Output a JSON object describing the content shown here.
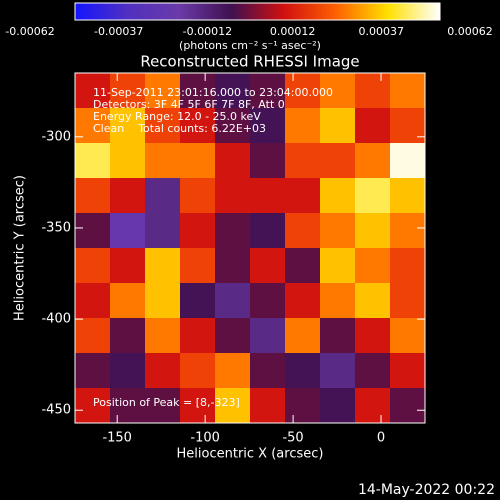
{
  "chart_data": {
    "type": "heatmap",
    "title": "Reconstructed RHESSI Image",
    "x_label": "Heliocentric X (arcsec)",
    "y_label": "Heliocentric Y (arcsec)",
    "annotations": [
      "11-Sep-2011 23:01:16.000 to 23:04:00.000",
      "Detectors: 3F 4F 5F 6F 7F 8F, Att 0",
      "Energy Range: 12.0 - 25.0 keV",
      "Clean    Total counts: 6.22E+03",
      "Position of Peak = [8,-323]"
    ],
    "footer": "14-May-2022 00:22",
    "colorbar": {
      "label": "(photons cm⁻² s⁻¹ asec⁻²)",
      "lim": [
        -0.00062,
        0.00062
      ],
      "ticks": [
        -0.00062,
        -0.00037,
        -0.00012,
        0.00012,
        0.00037,
        0.00062
      ]
    },
    "colormap": [
      "#1414ff",
      "#5030c0",
      "#6a3aa8",
      "#401050",
      "#d01010",
      "#ff6000",
      "#ffe000",
      "#ffffff"
    ],
    "xlim": [
      -174,
      25
    ],
    "ylim": [
      -457,
      -265
    ],
    "xticks": [
      -150,
      -100,
      -50,
      0
    ],
    "yticks": [
      -300,
      -350,
      -400,
      -450
    ],
    "z": [
      [
        0.0001,
        0.0002,
        0.0003,
        -5e-05,
        -0.0001,
        -5e-05,
        0.0002,
        0.0003,
        0.0002,
        0.0003
      ],
      [
        0.0003,
        0.0004,
        0.0002,
        0.0001,
        -5e-05,
        -0.0001,
        0.0003,
        0.0004,
        0.0001,
        0.0002
      ],
      [
        0.0005,
        0.0004,
        0.0003,
        0.0003,
        0.0001,
        -5e-05,
        0.0002,
        0.0002,
        0.0003,
        0.0006
      ],
      [
        0.0002,
        0.0001,
        -0.0002,
        0.0002,
        0.0001,
        0.0001,
        0.0001,
        0.0004,
        0.0005,
        0.0004
      ],
      [
        -5e-05,
        -0.0003,
        -0.0002,
        0.0001,
        -5e-05,
        -0.0001,
        0.0002,
        0.0003,
        0.0004,
        0.0003
      ],
      [
        0.0002,
        0.0001,
        0.0004,
        0.0002,
        -5e-05,
        0.0001,
        -5e-05,
        0.0004,
        0.0003,
        0.0002
      ],
      [
        0.0001,
        0.0003,
        0.0004,
        -0.0001,
        -0.0002,
        -5e-05,
        0.0001,
        0.0003,
        0.0004,
        0.0002
      ],
      [
        0.0002,
        -5e-05,
        0.0003,
        0.0001,
        -5e-05,
        -0.0002,
        0.0003,
        -5e-05,
        0.0001,
        0.0003
      ],
      [
        -5e-05,
        -0.0001,
        0.0001,
        0.0002,
        0.0003,
        -5e-05,
        -0.0001,
        -0.0002,
        -5e-05,
        0.0001
      ],
      [
        0.0001,
        -5e-05,
        -5e-05,
        0.0001,
        0.0004,
        0.0001,
        -5e-05,
        -0.0001,
        0.0001,
        -5e-05
      ]
    ]
  }
}
